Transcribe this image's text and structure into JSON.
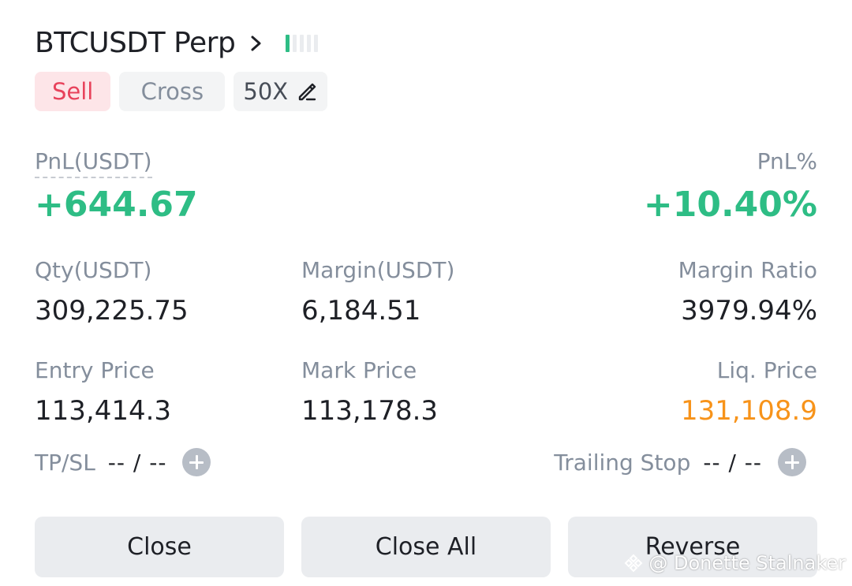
{
  "header": {
    "symbol": "BTCUSDT Perp"
  },
  "tags": {
    "side": "Sell",
    "margin_mode": "Cross",
    "leverage": "50X"
  },
  "pnl": {
    "label": "PnL(USDT)",
    "value": "+644.67",
    "pct_label": "PnL%",
    "pct_value": "+10.40%"
  },
  "stats": {
    "qty_label": "Qty(USDT)",
    "qty_value": "309,225.75",
    "margin_label": "Margin(USDT)",
    "margin_value": "6,184.51",
    "ratio_label": "Margin Ratio",
    "ratio_value": "3979.94%",
    "entry_label": "Entry Price",
    "entry_value": "113,414.3",
    "mark_label": "Mark Price",
    "mark_value": "113,178.3",
    "liq_label": "Liq. Price",
    "liq_value": "131,108.9"
  },
  "tpsl": {
    "label": "TP/SL",
    "value": "-- / --"
  },
  "trailing": {
    "label": "Trailing Stop",
    "value": "-- / --"
  },
  "buttons": {
    "close": "Close",
    "close_all": "Close All",
    "reverse": "Reverse"
  },
  "watermark": "@ Donette Stalnaker",
  "adl_level": 1,
  "colors": {
    "profit": "#2ebd85",
    "sell": "#e8425b",
    "liq": "#f7931a",
    "muted": "#848e9c",
    "text": "#1e2026"
  }
}
